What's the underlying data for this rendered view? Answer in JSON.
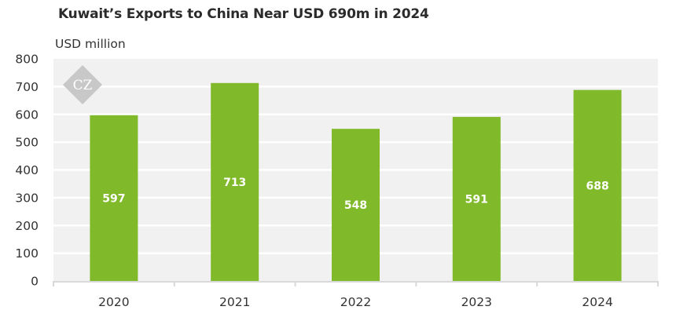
{
  "chart_data": {
    "type": "bar",
    "title": "Kuwait’s Exports to China Near USD 690m in 2024",
    "ylabel": "USD million",
    "xlabel": "",
    "categories": [
      "2020",
      "2021",
      "2022",
      "2023",
      "2024"
    ],
    "values": [
      597,
      713,
      548,
      591,
      688
    ],
    "data_labels": [
      "597",
      "713",
      "548",
      "591",
      "688"
    ],
    "ylim": [
      0,
      800
    ],
    "yticks": [
      0,
      100,
      200,
      300,
      400,
      500,
      600,
      700,
      800
    ],
    "ytick_labels": [
      "0",
      "100",
      "200",
      "300",
      "400",
      "500",
      "600",
      "700",
      "800"
    ],
    "grid": true,
    "legend": "none",
    "colors": {
      "bar": "#80b929",
      "plot_bg": "#f1f1f1",
      "grid": "#ffffff",
      "axis": "#d9d9d9"
    }
  },
  "watermark": {
    "text": "CZ"
  }
}
